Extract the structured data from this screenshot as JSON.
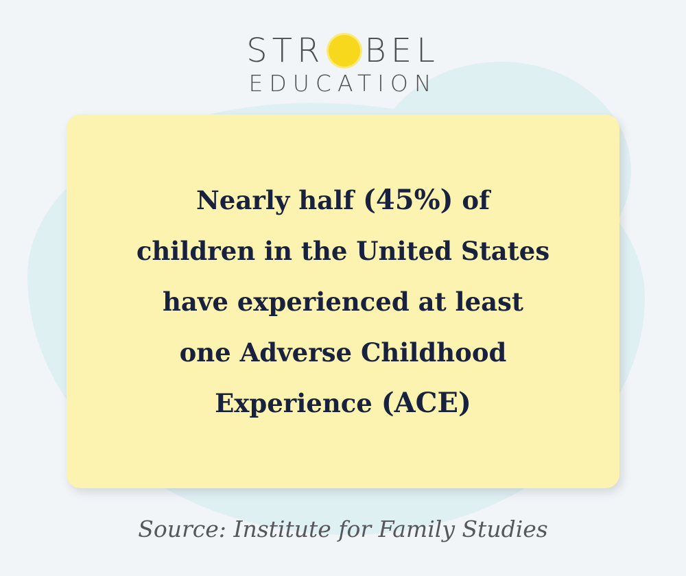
{
  "logo": {
    "line1_left": "STR",
    "line1_right": "BEL",
    "line2": "EDUCATION",
    "text": "STROBEL EDUCATION"
  },
  "colors": {
    "background": "#f1f5f8",
    "blob": "#dff0f3",
    "card": "#fcf3b0",
    "text": "#18223f",
    "sun": "#f7d81c"
  },
  "card": {
    "lines": [
      {
        "pre": "Nearly half ",
        "em": "(45%)",
        "post": " of"
      },
      {
        "pre": "children in the United States"
      },
      {
        "pre": "have experienced at least"
      },
      {
        "pre": "one Adverse Childhood"
      },
      {
        "pre": "Experience ",
        "em": "(ACE)"
      }
    ]
  },
  "source": "Source: Institute for Family Studies"
}
